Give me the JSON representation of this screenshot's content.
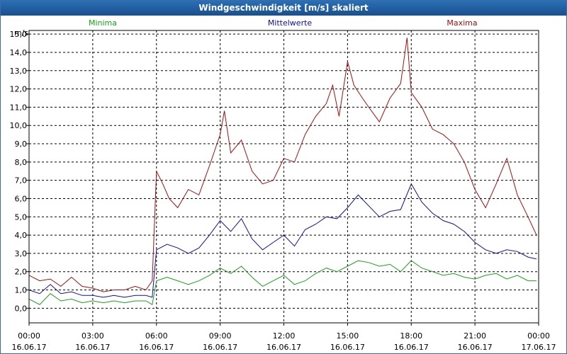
{
  "window": {
    "title": "Windgeschwindigkeit [m/s] skaliert"
  },
  "chart_data": {
    "type": "line",
    "title": "Windgeschwindigkeit [m/s] skaliert",
    "ylabel": "m/s",
    "xlabel": "",
    "ylim": [
      -0.8,
      15.2
    ],
    "xlim_hours": [
      0,
      24
    ],
    "grid": true,
    "legend_position": "top",
    "y_ticks": [
      "0,0",
      "1,0",
      "2,0",
      "3,0",
      "4,0",
      "5,0",
      "6,0",
      "7,0",
      "8,0",
      "9,0",
      "10,0",
      "11,0",
      "12,0",
      "13,0",
      "14,0",
      "15,0"
    ],
    "y_tick_values": [
      0,
      1,
      2,
      3,
      4,
      5,
      6,
      7,
      8,
      9,
      10,
      11,
      12,
      13,
      14,
      15
    ],
    "x_ticks": [
      {
        "time": "00:00",
        "date": "16.06.17"
      },
      {
        "time": "03:00",
        "date": "16.06.17"
      },
      {
        "time": "06:00",
        "date": "16.06.17"
      },
      {
        "time": "09:00",
        "date": "16.06.17"
      },
      {
        "time": "12:00",
        "date": "16.06.17"
      },
      {
        "time": "15:00",
        "date": "16.06.17"
      },
      {
        "time": "18:00",
        "date": "16.06.17"
      },
      {
        "time": "21:00",
        "date": "16.06.17"
      },
      {
        "time": "00:00",
        "date": "17.06.17"
      }
    ],
    "x_tick_hours": [
      0,
      3,
      6,
      9,
      12,
      15,
      18,
      21,
      24
    ],
    "series": [
      {
        "name": "Minima",
        "color": "#1aa01a",
        "hours": [
          0.0,
          0.5,
          1.0,
          1.5,
          2.0,
          2.5,
          3.0,
          3.5,
          4.0,
          4.5,
          5.0,
          5.5,
          5.8,
          6.0,
          6.5,
          7.0,
          7.5,
          8.0,
          8.5,
          9.0,
          9.5,
          10.0,
          10.5,
          11.0,
          11.5,
          12.0,
          12.5,
          13.0,
          13.5,
          14.0,
          14.5,
          15.0,
          15.5,
          16.0,
          16.5,
          17.0,
          17.5,
          18.0,
          18.5,
          19.0,
          19.5,
          20.0,
          20.5,
          21.0,
          21.5,
          22.0,
          22.5,
          23.0,
          23.5,
          23.9
        ],
        "values": [
          0.5,
          0.2,
          0.8,
          0.4,
          0.5,
          0.3,
          0.4,
          0.3,
          0.4,
          0.3,
          0.4,
          0.4,
          0.2,
          1.5,
          1.7,
          1.5,
          1.3,
          1.5,
          1.8,
          2.2,
          1.9,
          2.3,
          1.7,
          1.2,
          1.5,
          1.8,
          1.3,
          1.5,
          1.9,
          2.2,
          2.0,
          2.3,
          2.6,
          2.5,
          2.3,
          2.4,
          2.0,
          2.6,
          2.2,
          2.0,
          1.8,
          1.9,
          1.7,
          1.6,
          1.8,
          1.9,
          1.6,
          1.8,
          1.5,
          1.5
        ]
      },
      {
        "name": "Mittelwerte",
        "color": "#1010a0",
        "hours": [
          0.0,
          0.5,
          1.0,
          1.5,
          2.0,
          2.5,
          3.0,
          3.5,
          4.0,
          4.5,
          5.0,
          5.5,
          5.8,
          6.0,
          6.5,
          7.0,
          7.5,
          8.0,
          8.5,
          9.0,
          9.5,
          10.0,
          10.5,
          11.0,
          11.5,
          12.0,
          12.5,
          13.0,
          13.5,
          14.0,
          14.5,
          15.0,
          15.5,
          16.0,
          16.5,
          17.0,
          17.5,
          18.0,
          18.5,
          19.0,
          19.5,
          20.0,
          20.5,
          21.0,
          21.5,
          22.0,
          22.5,
          23.0,
          23.5,
          23.9
        ],
        "values": [
          1.0,
          0.8,
          1.3,
          0.8,
          0.9,
          0.7,
          0.7,
          0.6,
          0.7,
          0.6,
          0.7,
          0.7,
          0.6,
          3.2,
          3.5,
          3.3,
          3.0,
          3.3,
          4.0,
          4.8,
          4.2,
          4.9,
          3.8,
          3.2,
          3.6,
          4.0,
          3.4,
          4.3,
          4.6,
          5.0,
          4.9,
          5.5,
          6.2,
          5.6,
          5.0,
          5.3,
          5.4,
          6.8,
          5.8,
          5.2,
          4.8,
          4.6,
          4.2,
          3.6,
          3.2,
          3.0,
          3.2,
          3.1,
          2.8,
          2.7
        ]
      },
      {
        "name": "Maxima",
        "color": "#a01010",
        "hours": [
          0.0,
          0.5,
          1.0,
          1.5,
          2.0,
          2.5,
          3.0,
          3.5,
          4.0,
          4.5,
          5.0,
          5.5,
          5.8,
          6.0,
          6.3,
          6.6,
          7.0,
          7.5,
          8.0,
          8.5,
          9.0,
          9.2,
          9.5,
          10.0,
          10.5,
          11.0,
          11.5,
          12.0,
          12.5,
          13.0,
          13.5,
          14.0,
          14.3,
          14.6,
          15.0,
          15.3,
          15.7,
          16.0,
          16.5,
          17.0,
          17.5,
          17.8,
          18.0,
          18.5,
          19.0,
          19.5,
          20.0,
          20.5,
          21.0,
          21.5,
          22.0,
          22.5,
          23.0,
          23.5,
          23.9
        ],
        "values": [
          1.8,
          1.5,
          1.6,
          1.2,
          1.7,
          1.2,
          1.1,
          0.9,
          1.0,
          1.0,
          1.2,
          1.0,
          1.5,
          7.5,
          6.8,
          6.0,
          5.5,
          6.5,
          6.2,
          7.8,
          9.5,
          10.8,
          8.5,
          9.2,
          7.5,
          6.8,
          7.0,
          8.2,
          8.0,
          9.5,
          10.5,
          11.2,
          12.2,
          10.5,
          13.5,
          12.2,
          11.5,
          11.0,
          10.2,
          11.5,
          12.3,
          14.8,
          11.8,
          11.0,
          9.8,
          9.5,
          9.0,
          8.0,
          6.5,
          5.5,
          6.8,
          8.2,
          6.2,
          5.0,
          4.0
        ]
      }
    ]
  }
}
